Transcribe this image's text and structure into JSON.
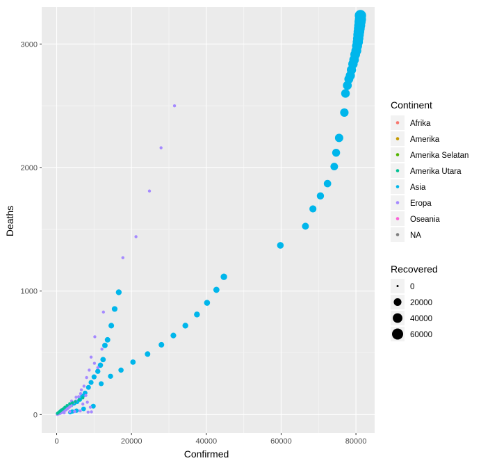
{
  "chart_data": {
    "type": "scatter",
    "xlabel": "Confirmed",
    "ylabel": "Deaths",
    "xlim": [
      -4000,
      85000
    ],
    "ylim": [
      -150,
      3300
    ],
    "x_ticks": [
      0,
      20000,
      40000,
      60000,
      80000
    ],
    "y_ticks": [
      0,
      1000,
      2000,
      3000
    ],
    "x_tick_labels": [
      "0",
      "20000",
      "40000",
      "60000",
      "80000"
    ],
    "y_tick_labels": [
      "0",
      "1000",
      "2000",
      "3000"
    ],
    "grid": true,
    "colors": {
      "panel": "#ebebeb",
      "grid_major": "#ffffff",
      "Afrika": "#F8766D",
      "Amerika": "#C49A00",
      "Amerika Selatan": "#53B400",
      "Amerika Utara": "#00C094",
      "Asia": "#00B6EB",
      "Eropa": "#A58AFF",
      "Oseania": "#FB61D7",
      "NA": "#7F7F7F"
    },
    "color_legend": {
      "title": "Continent",
      "items": [
        "Afrika",
        "Amerika",
        "Amerika Selatan",
        "Amerika Utara",
        "Asia",
        "Eropa",
        "Oseania",
        "NA"
      ]
    },
    "size_legend": {
      "title": "Recovered",
      "items": [
        {
          "label": "0",
          "value": 0
        },
        {
          "label": "20000",
          "value": 20000
        },
        {
          "label": "40000",
          "value": 40000
        },
        {
          "label": "60000",
          "value": 60000
        }
      ]
    },
    "series": [
      {
        "name": "Asia",
        "points": [
          [
            278,
            6,
            0
          ],
          [
            480,
            12,
            40
          ],
          [
            650,
            18,
            80
          ],
          [
            920,
            26,
            120
          ],
          [
            1250,
            34,
            200
          ],
          [
            1700,
            41,
            300
          ],
          [
            2100,
            49,
            400
          ],
          [
            2600,
            56,
            600
          ],
          [
            3200,
            65,
            800
          ],
          [
            3900,
            76,
            1100
          ],
          [
            4700,
            90,
            1400
          ],
          [
            5500,
            104,
            1700
          ],
          [
            6200,
            122,
            2000
          ],
          [
            6900,
            150,
            2300
          ],
          [
            7600,
            175,
            2600
          ],
          [
            8500,
            220,
            3000
          ],
          [
            9200,
            260,
            3400
          ],
          [
            10000,
            305,
            3700
          ],
          [
            11000,
            350,
            4200
          ],
          [
            11700,
            400,
            4600
          ],
          [
            12400,
            445,
            5000
          ],
          [
            12900,
            560,
            5200
          ],
          [
            13600,
            605,
            5500
          ],
          [
            14600,
            720,
            6000
          ],
          [
            15500,
            855,
            6500
          ],
          [
            16600,
            990,
            7000
          ],
          [
            3600,
            18,
            1100
          ],
          [
            4200,
            25,
            1400
          ],
          [
            5300,
            32,
            1800
          ],
          [
            7200,
            46,
            2400
          ],
          [
            9800,
            68,
            3000
          ],
          [
            11900,
            250,
            3400
          ],
          [
            14400,
            310,
            4000
          ],
          [
            17200,
            360,
            4500
          ],
          [
            20400,
            425,
            5000
          ],
          [
            24300,
            490,
            5600
          ],
          [
            28000,
            565,
            6000
          ],
          [
            31200,
            640,
            6500
          ],
          [
            34400,
            720,
            7000
          ],
          [
            37500,
            810,
            7500
          ],
          [
            40200,
            905,
            8000
          ],
          [
            42700,
            1010,
            9000
          ],
          [
            44700,
            1115,
            11000
          ],
          [
            59800,
            1370,
            12000
          ],
          [
            66500,
            1525,
            14000
          ],
          [
            68500,
            1665,
            15000
          ],
          [
            70500,
            1770,
            16000
          ],
          [
            72400,
            1870,
            17500
          ],
          [
            74200,
            2008,
            19000
          ],
          [
            74700,
            2120,
            22000
          ],
          [
            75500,
            2240,
            26000
          ],
          [
            76900,
            2445,
            27000
          ],
          [
            77200,
            2600,
            29000
          ],
          [
            77700,
            2665,
            31000
          ],
          [
            78100,
            2716,
            32000
          ],
          [
            78500,
            2745,
            34000
          ],
          [
            78800,
            2790,
            35000
          ],
          [
            79200,
            2838,
            37000
          ],
          [
            79500,
            2872,
            39000
          ],
          [
            79800,
            2915,
            41000
          ],
          [
            80100,
            2946,
            43000
          ],
          [
            80300,
            2985,
            45000
          ],
          [
            80500,
            3016,
            47000
          ],
          [
            80600,
            3045,
            49000
          ],
          [
            80700,
            3075,
            51000
          ],
          [
            80800,
            3100,
            53000
          ],
          [
            80900,
            3125,
            55000
          ],
          [
            81000,
            3150,
            58000
          ],
          [
            81100,
            3180,
            60000
          ],
          [
            81200,
            3200,
            61000
          ],
          [
            81200,
            3230,
            63000
          ]
        ]
      },
      {
        "name": "Eropa",
        "points": [
          [
            150,
            2,
            0
          ],
          [
            300,
            4,
            0
          ],
          [
            500,
            6,
            0
          ],
          [
            700,
            8,
            0
          ],
          [
            900,
            10,
            0
          ],
          [
            1100,
            13,
            0
          ],
          [
            1300,
            16,
            0
          ],
          [
            1500,
            20,
            0
          ],
          [
            1800,
            24,
            0
          ],
          [
            2100,
            31,
            0
          ],
          [
            2500,
            38,
            0
          ],
          [
            2900,
            47,
            0
          ],
          [
            3400,
            60,
            0
          ],
          [
            3900,
            73,
            0
          ],
          [
            4500,
            98,
            0
          ],
          [
            5100,
            110,
            0
          ],
          [
            5900,
            145,
            0
          ],
          [
            6400,
            170,
            0
          ],
          [
            7300,
            230,
            0
          ],
          [
            8000,
            300,
            0
          ],
          [
            8700,
            360,
            0
          ],
          [
            9200,
            465,
            0
          ],
          [
            10100,
            415,
            0
          ],
          [
            11000,
            380,
            0
          ],
          [
            10200,
            630,
            0
          ],
          [
            12100,
            530,
            0
          ],
          [
            12500,
            830,
            0
          ],
          [
            17700,
            1270,
            0
          ],
          [
            21200,
            1440,
            0
          ],
          [
            24800,
            1810,
            0
          ],
          [
            27900,
            2160,
            0
          ],
          [
            31500,
            2500,
            0
          ],
          [
            1200,
            20,
            0
          ],
          [
            2000,
            14,
            0
          ],
          [
            3500,
            24,
            0
          ],
          [
            4800,
            25,
            0
          ],
          [
            6300,
            30,
            0
          ],
          [
            8400,
            20,
            0
          ],
          [
            9300,
            22,
            0
          ],
          [
            4000,
            110,
            0
          ],
          [
            5200,
            140,
            0
          ],
          [
            6600,
            200,
            0
          ],
          [
            7000,
            85,
            0
          ],
          [
            7800,
            155,
            0
          ],
          [
            8200,
            100,
            0
          ],
          [
            9000,
            60,
            0
          ],
          [
            3000,
            70,
            0
          ]
        ]
      },
      {
        "name": "Amerika Utara",
        "points": [
          [
            200,
            10,
            0
          ],
          [
            400,
            15,
            0
          ],
          [
            700,
            22,
            0
          ],
          [
            1000,
            30,
            0
          ],
          [
            1300,
            38,
            0
          ],
          [
            1700,
            45,
            0
          ],
          [
            2200,
            60,
            0
          ],
          [
            2800,
            74,
            0
          ],
          [
            3500,
            88,
            0
          ],
          [
            4200,
            95,
            0
          ],
          [
            5000,
            105,
            0
          ],
          [
            6000,
            120,
            0
          ],
          [
            7000,
            135,
            0
          ]
        ]
      }
    ]
  }
}
